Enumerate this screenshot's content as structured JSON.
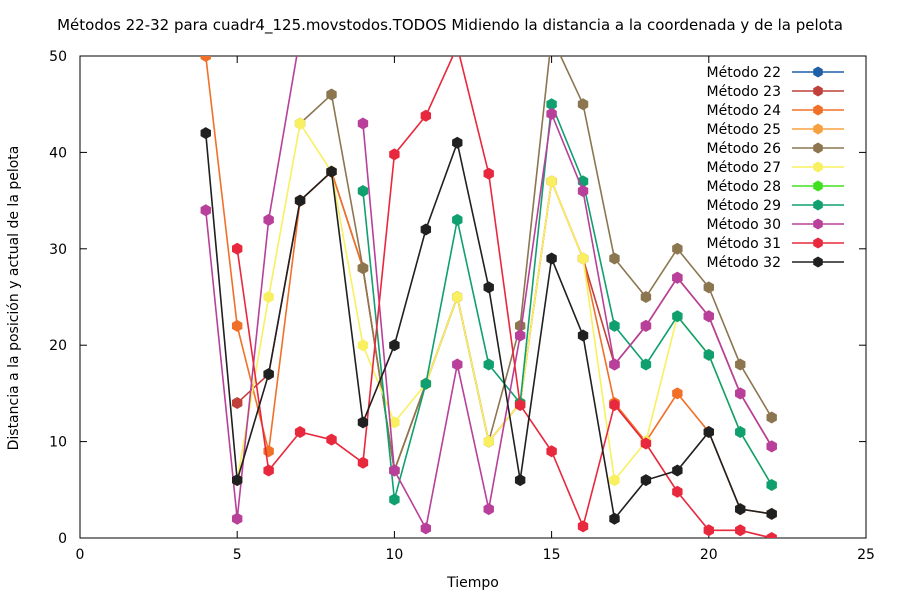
{
  "chart_data": {
    "type": "line",
    "title": "Métodos 22-32 para cuadr4_125.movstodos.TODOS Midiendo la distancia a la coordenada y de la pelota",
    "xlabel": "Tiempo",
    "ylabel": "Distancia a la posición y actual de la pelota",
    "xlim": [
      0,
      25
    ],
    "ylim": [
      0,
      50
    ],
    "xticks": [
      0,
      5,
      10,
      15,
      20,
      25
    ],
    "yticks": [
      0,
      10,
      20,
      30,
      40,
      50
    ],
    "grid": false,
    "legend_position": "top-right",
    "x": [
      4,
      5,
      6,
      7,
      8,
      9,
      10,
      11,
      12,
      13,
      14,
      15,
      16,
      17,
      18,
      19,
      20,
      21,
      22
    ],
    "series": [
      {
        "name": "Método 22",
        "color": "#1f5fa8",
        "values": [
          null,
          null,
          null,
          null,
          null,
          null,
          null,
          null,
          null,
          null,
          null,
          null,
          null,
          null,
          null,
          null,
          null,
          null,
          null
        ]
      },
      {
        "name": "Método 23",
        "color": "#c0403c",
        "values": [
          null,
          14,
          17,
          35,
          38,
          28,
          7,
          16,
          25,
          10,
          14,
          37,
          29,
          18,
          22,
          27,
          23,
          15,
          9.5
        ]
      },
      {
        "name": "Método 24",
        "color": "#f07028",
        "values": [
          50,
          22,
          9,
          35,
          38,
          28,
          7,
          16,
          25,
          10,
          14,
          37,
          29,
          14,
          10,
          15,
          11,
          3,
          2.5
        ]
      },
      {
        "name": "Método 25",
        "color": "#f8a040",
        "values": [
          null,
          null,
          null,
          null,
          null,
          null,
          null,
          null,
          null,
          null,
          null,
          null,
          null,
          null,
          null,
          null,
          null,
          null,
          null
        ]
      },
      {
        "name": "Método 26",
        "color": "#8c7650",
        "values": [
          null,
          null,
          null,
          43,
          46,
          28,
          7,
          16,
          25,
          10,
          22,
          52,
          45,
          29,
          25,
          30,
          26,
          18,
          12.5
        ]
      },
      {
        "name": "Método 27",
        "color": "#f8f060",
        "values": [
          null,
          6,
          25,
          43,
          38,
          20,
          12,
          16,
          25,
          10,
          14,
          37,
          29,
          6,
          10,
          23,
          19,
          11,
          5.5
        ]
      },
      {
        "name": "Método 28",
        "color": "#40e020",
        "values": [
          null,
          null,
          null,
          null,
          null,
          null,
          null,
          null,
          null,
          null,
          null,
          null,
          null,
          null,
          null,
          null,
          null,
          null,
          null
        ]
      },
      {
        "name": "Método 29",
        "color": "#10a070",
        "values": [
          null,
          null,
          null,
          null,
          null,
          36,
          4,
          16,
          33,
          18,
          14,
          45,
          37,
          22,
          18,
          23,
          19,
          11,
          5.5
        ]
      },
      {
        "name": "Método 30",
        "color": "#b8409a",
        "values": [
          34,
          2,
          33,
          52,
          null,
          43,
          7,
          1,
          18,
          3,
          21,
          44,
          36,
          18,
          22,
          27,
          23,
          15,
          9.5
        ]
      },
      {
        "name": "Método 31",
        "color": "#e8283c",
        "values": [
          null,
          30,
          7,
          11,
          10.2,
          7.8,
          39.8,
          43.8,
          51,
          37.8,
          13.8,
          9,
          1.2,
          13.8,
          9.8,
          4.8,
          0.8,
          0.8,
          0
        ]
      },
      {
        "name": "Método 32",
        "color": "#202020",
        "values": [
          42,
          6,
          17,
          35,
          38,
          12,
          20,
          32,
          41,
          26,
          6,
          29,
          21,
          2,
          6,
          7,
          11,
          3,
          2.5
        ]
      }
    ]
  }
}
